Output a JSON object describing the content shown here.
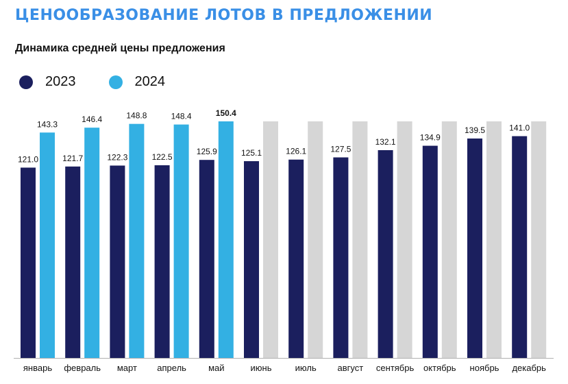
{
  "header": {
    "title": "ЦЕНООБРАЗОВАНИЕ ЛОТОВ В ПРЕДЛОЖЕНИИ",
    "subtitle": "Динамика средней цены предложения"
  },
  "chart_data": {
    "type": "bar",
    "title": "Динамика средней цены предложения",
    "xlabel": "",
    "ylabel": "",
    "categories": [
      "январь",
      "февраль",
      "март",
      "апрель",
      "май",
      "июнь",
      "июль",
      "август",
      "сентябрь",
      "октябрь",
      "ноябрь",
      "декабрь"
    ],
    "series": [
      {
        "name": "2023",
        "color": "#1b1f5e",
        "values": [
          121.0,
          121.7,
          122.3,
          122.5,
          125.9,
          125.1,
          126.1,
          127.5,
          132.1,
          134.9,
          139.5,
          141.0
        ],
        "labels": [
          "121.0",
          "121.7",
          "122.3",
          "122.5",
          "125.9",
          "125.1",
          "126.1",
          "127.5",
          "132.1",
          "134.9",
          "139.5",
          "141.0"
        ]
      },
      {
        "name": "2024",
        "color": "#33b0e3",
        "values": [
          143.3,
          146.4,
          148.8,
          148.4,
          150.4,
          null,
          null,
          null,
          null,
          null,
          null,
          null
        ],
        "labels": [
          "143.3",
          "146.4",
          "148.8",
          "148.4",
          "150.4"
        ]
      }
    ],
    "placeholder_color": "#d6d6d6",
    "placeholder_value": 150.4,
    "highlight_label": "150.4",
    "ylim": [
      0,
      150.4
    ],
    "grid": false,
    "legend_position": "top-left"
  }
}
